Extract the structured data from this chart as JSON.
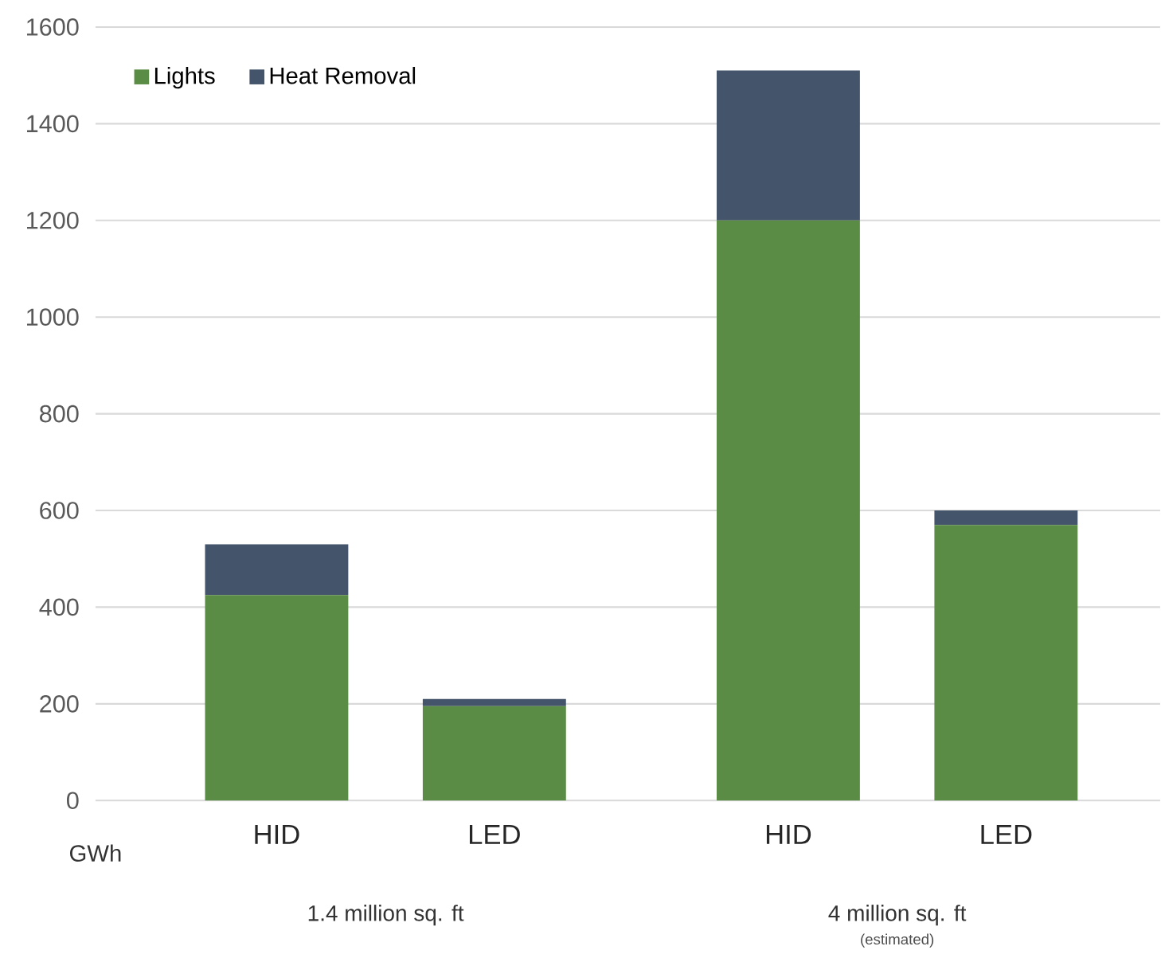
{
  "chart_data": {
    "type": "bar",
    "stacked": true,
    "categories": [
      "HID",
      "LED",
      "HID",
      "LED"
    ],
    "series": [
      {
        "name": "Lights",
        "color": "#5b8c45",
        "values": [
          425,
          195,
          1200,
          570
        ]
      },
      {
        "name": "Heat Removal",
        "color": "#44546a",
        "values": [
          105,
          15,
          310,
          30
        ]
      }
    ],
    "ylabel": "GWh",
    "ylim": [
      0,
      1600
    ],
    "yticks": [
      0,
      200,
      400,
      600,
      800,
      1000,
      1200,
      1400,
      1600
    ],
    "grid": "y",
    "legend": "top left",
    "annotations": [
      "1.4 million sq. ft",
      "4 million sq. ft",
      "(estimated)"
    ]
  }
}
